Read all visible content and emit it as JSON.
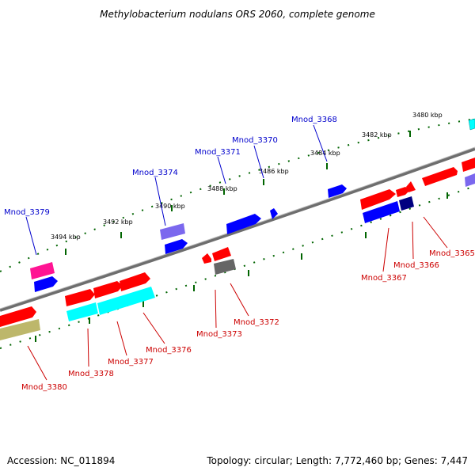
{
  "title": "Methylobacterium nodulans ORS 2060, complete genome",
  "footer": {
    "accession": "Accession: NC_011894",
    "topology": "Topology: circular; Length: 7,772,460 bp; Genes: 7,447"
  },
  "ticks": [
    "3480 kbp",
    "3482 kbp",
    "3484 kbp",
    "3486 kbp",
    "3488 kbp",
    "3490 kbp",
    "3492 kbp",
    "3494 kbp"
  ],
  "genes_top": [
    "Mnod_3368",
    "Mnod_3370",
    "Mnod_3371",
    "Mnod_3374",
    "Mnod_3379"
  ],
  "genes_bottom": [
    "Mnod_3365",
    "Mnod_3366",
    "Mnod_3367",
    "Mnod_3372",
    "Mnod_3373",
    "Mnod_3376",
    "Mnod_3377",
    "Mnod_3378",
    "Mnod_3380"
  ],
  "colors": {
    "red": "#ff0000",
    "blue": "#0000ff",
    "cyan": "#00ffff",
    "navy": "#000080",
    "purple": "#7b68ee",
    "magenta": "#ff1493",
    "gray": "#666666",
    "olive": "#bdb76b",
    "tick": "#006400"
  }
}
